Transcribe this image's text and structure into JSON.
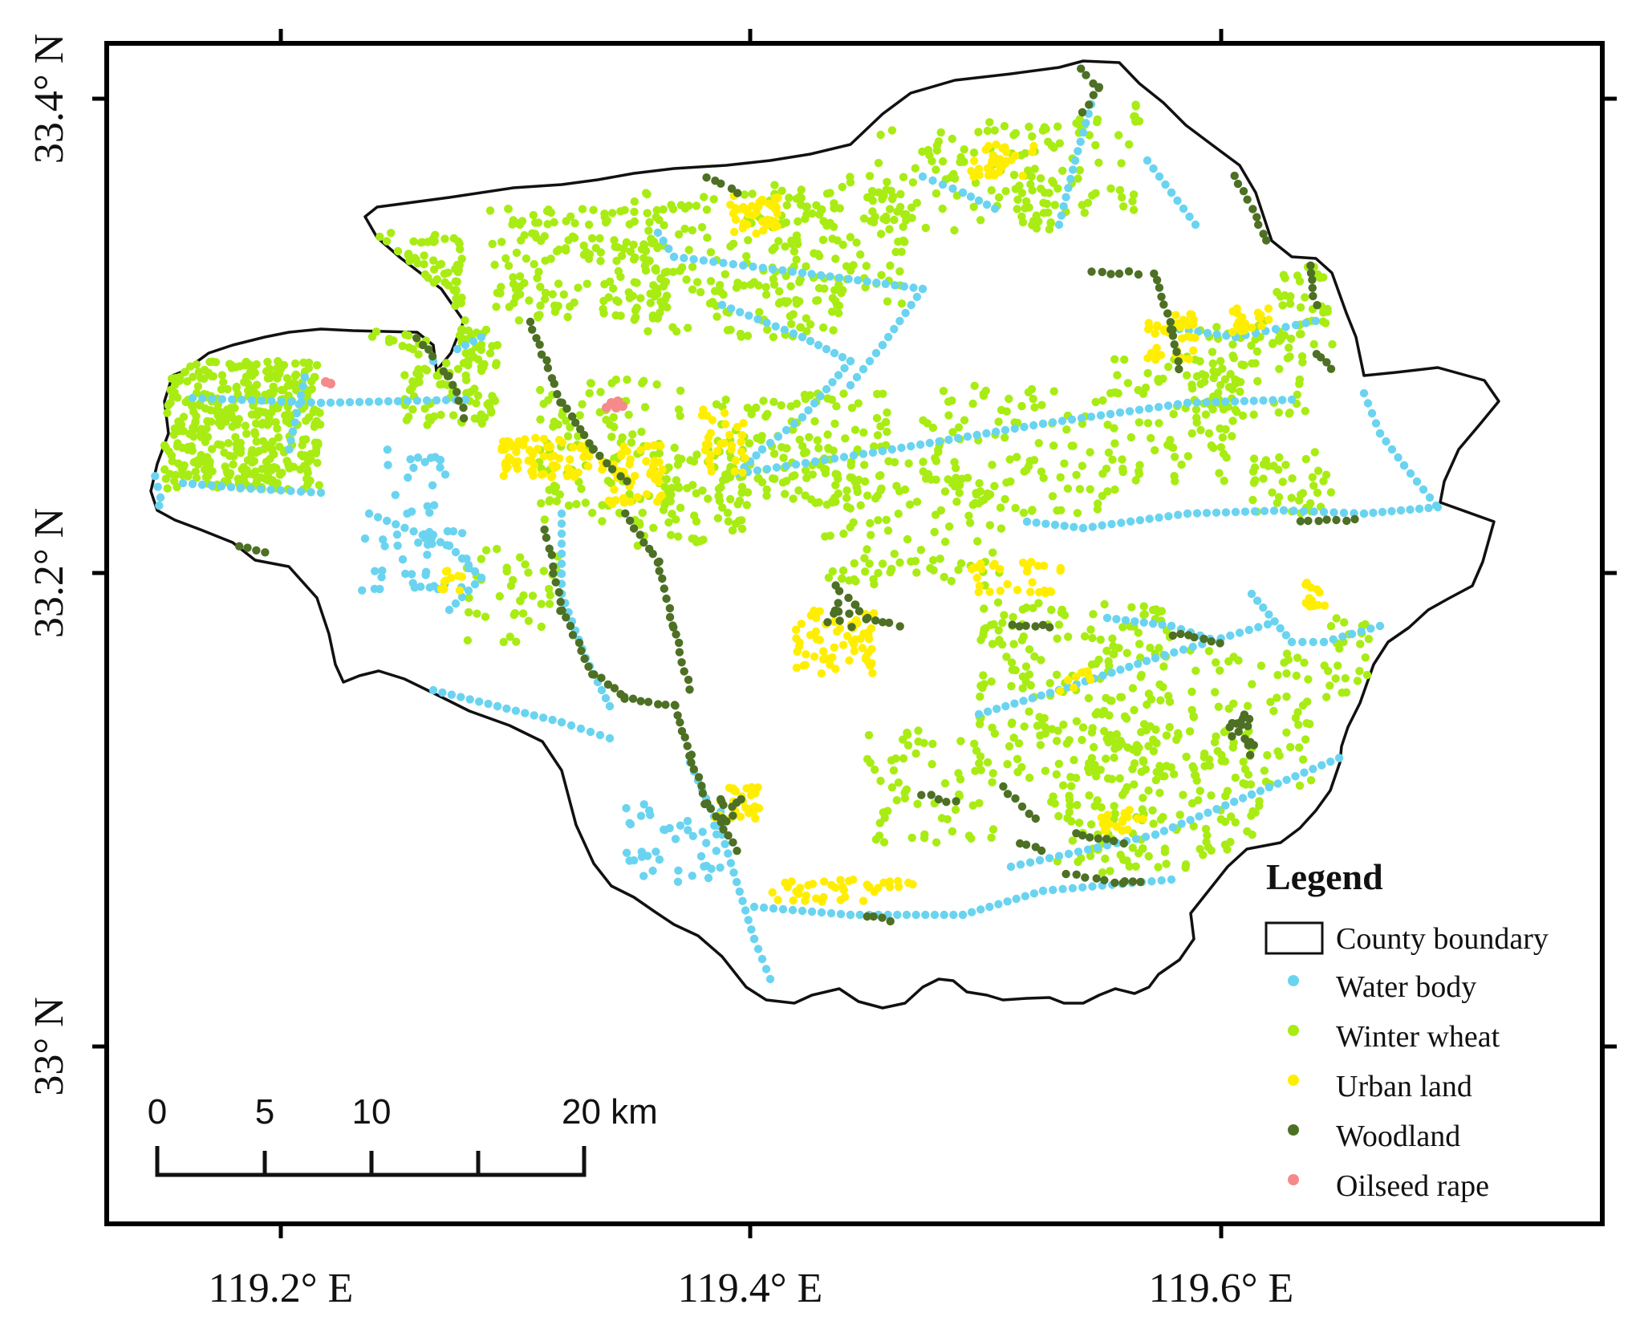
{
  "map": {
    "x_ticks": [
      "119.2° E",
      "119.4° E",
      "119.6° E"
    ],
    "y_ticks": [
      "33.4° N",
      "33.2° N",
      "33° N"
    ]
  },
  "legend": {
    "title": "Legend",
    "items": [
      {
        "label": "County boundary",
        "kind": "polygon",
        "color": "#000000"
      },
      {
        "label": "Water body",
        "kind": "point",
        "color": "#6ad4f0"
      },
      {
        "label": "Winter wheat",
        "kind": "point",
        "color": "#a8ec14"
      },
      {
        "label": "Urban land",
        "kind": "point",
        "color": "#ffee00"
      },
      {
        "label": "Woodland",
        "kind": "point",
        "color": "#4d7024"
      },
      {
        "label": "Oilseed rape",
        "kind": "point",
        "color": "#f48a8a"
      }
    ]
  },
  "scale_bar": {
    "labels": [
      "0",
      "5",
      "10",
      "20 km"
    ]
  }
}
